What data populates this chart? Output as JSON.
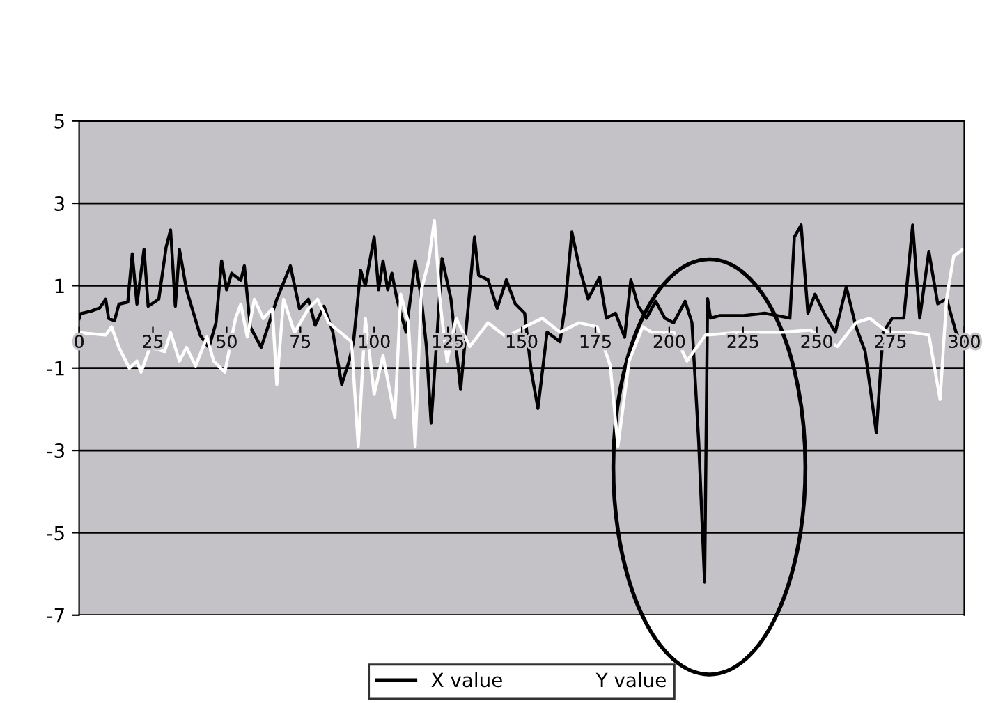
{
  "chart_data": {
    "type": "line",
    "xlim": [
      0,
      300
    ],
    "xticks": [
      0,
      25,
      50,
      75,
      100,
      125,
      150,
      175,
      200,
      225,
      250,
      275,
      300
    ],
    "ylim": [
      -7,
      5
    ],
    "yticks": [
      -7,
      -5,
      -3,
      -1,
      1,
      3,
      5
    ],
    "grid": "y",
    "legend": "bottom",
    "marker": "none",
    "line_style": "solid",
    "series": [
      {
        "name": "X value",
        "color": "#000000",
        "x": [
          0,
          0.5,
          4,
          7,
          9,
          10,
          12,
          13.5,
          16.5,
          18,
          19.6,
          22,
          23.4,
          27,
          29.5,
          31,
          32.6,
          34,
          36.4,
          41,
          44,
          46.4,
          48.3,
          50,
          51.7,
          54.8,
          56,
          58,
          61.7,
          64,
          67,
          71.6,
          74.7,
          77.7,
          80,
          83,
          86,
          89,
          91.5,
          93,
          95.4,
          97,
          100,
          101.5,
          103,
          104.6,
          106,
          107.7,
          110.8,
          113.9,
          116,
          117.7,
          119.3,
          121.6,
          123,
          126,
          129.3,
          132.4,
          134,
          135.4,
          138.6,
          141.7,
          144.8,
          147.8,
          151,
          153.2,
          155.5,
          158.6,
          163,
          164.8,
          167,
          169.4,
          172.5,
          176.4,
          178.7,
          181.8,
          184.9,
          187,
          189.5,
          192.3,
          195.4,
          198.5,
          201.5,
          205.4,
          207.7,
          210,
          212,
          213,
          214,
          217,
          224.7,
          232.4,
          240.9,
          242.4,
          244.7,
          247,
          249.4,
          252.5,
          256.3,
          260,
          263.3,
          266.4,
          270.2,
          272.5,
          275.6,
          279.5,
          282.5,
          284.9,
          288,
          291,
          294,
          297.2,
          299.5
        ],
        "values": [
          0.2,
          0.32,
          0.38,
          0.46,
          0.67,
          0.2,
          0.15,
          0.55,
          0.6,
          1.77,
          0.55,
          1.88,
          0.5,
          0.67,
          1.94,
          2.35,
          0.5,
          1.88,
          0.9,
          -0.2,
          -0.5,
          0.1,
          1.6,
          0.9,
          1.3,
          1.13,
          1.48,
          0,
          -0.5,
          0,
          0.67,
          1.48,
          0.44,
          0.67,
          0.04,
          0.5,
          -0.13,
          -1.4,
          -0.83,
          -0.36,
          1.37,
          1.0,
          2.18,
          0.9,
          1.6,
          0.9,
          1.3,
          0.68,
          -0.13,
          1.6,
          0.68,
          -0.48,
          -2.33,
          0.1,
          1.66,
          0.68,
          -1.52,
          0.9,
          2.18,
          1.25,
          1.14,
          0.45,
          1.14,
          0.56,
          0.33,
          -1.06,
          -1.98,
          -0.13,
          -0.36,
          0.56,
          2.3,
          1.49,
          0.68,
          1.2,
          0.21,
          0.33,
          -0.25,
          1.14,
          0.5,
          0.21,
          0.62,
          0.21,
          0.1,
          0.62,
          0.1,
          -2.8,
          -6.2,
          0.68,
          0.21,
          0.27,
          0.27,
          0.33,
          0.21,
          2.18,
          2.47,
          0.33,
          0.79,
          0.33,
          -0.13,
          0.97,
          0,
          -0.6,
          -2.57,
          -0.13,
          0.21,
          0.21,
          2.47,
          0.21,
          1.83,
          0.56,
          0.68,
          -0.13,
          -0.48
        ]
      },
      {
        "name": "Y value",
        "color": "#ffffff",
        "x": [
          0,
          9,
          11,
          13.5,
          17,
          19.6,
          21,
          24,
          29,
          31,
          34,
          36.4,
          39.5,
          43.3,
          45.6,
          49.4,
          53,
          54.8,
          57,
          59.4,
          62.4,
          65.5,
          67,
          69.3,
          73,
          77.7,
          80.8,
          84.6,
          92.3,
          94.6,
          97,
          100,
          103,
          107,
          109,
          111.6,
          113.9,
          116,
          118.5,
          120.4,
          122.4,
          124.7,
          127.8,
          132.4,
          138.6,
          144.8,
          151,
          157,
          163,
          169.4,
          175.6,
          180,
          182.6,
          186.4,
          191,
          194,
          201.5,
          206,
          212.3,
          224.7,
          238.6,
          247.8,
          257,
          263.3,
          268,
          274,
          281.8,
          288,
          291.8,
          294,
          296.4,
          299.5
        ],
        "values": [
          -0.14,
          -0.2,
          0,
          -0.5,
          -1.0,
          -0.83,
          -1.1,
          -0.5,
          -0.6,
          -0.14,
          -0.83,
          -0.5,
          -0.95,
          -0.25,
          -0.83,
          -1.1,
          0.2,
          0.55,
          -0.25,
          0.67,
          0.2,
          0.44,
          -1.4,
          0.67,
          -0.14,
          0.44,
          0.67,
          0.1,
          -0.36,
          -2.9,
          0.21,
          -1.64,
          -0.7,
          -2.2,
          0.79,
          0.1,
          -2.9,
          0.9,
          1.6,
          2.58,
          0.56,
          -0.83,
          0.21,
          -0.48,
          0.1,
          -0.25,
          0,
          0.21,
          -0.13,
          0.1,
          0,
          -0.94,
          -2.9,
          -0.83,
          0,
          -0.13,
          -0.13,
          -0.83,
          -0.2,
          -0.13,
          -0.13,
          -0.08,
          -0.48,
          0.1,
          0.21,
          -0.13,
          -0.13,
          -0.2,
          -1.76,
          0.67,
          1.71,
          1.88
        ]
      }
    ]
  }
}
